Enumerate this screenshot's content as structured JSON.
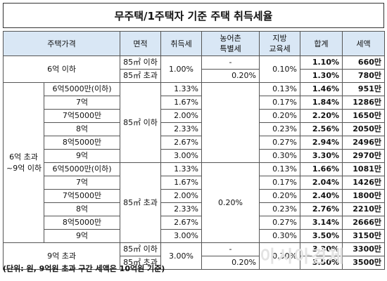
{
  "title": "무주택/1주택자 기준 주택 취득세율",
  "headers": {
    "price": "주택가격",
    "area": "면적",
    "acq_tax": "취득세",
    "rural_tax_l1": "농어촌",
    "rural_tax_l2": "특별세",
    "edu_tax_l1": "지방",
    "edu_tax_l2": "교육세",
    "total": "합계",
    "amount": "세액"
  },
  "groups": {
    "g1_price": "6억 이하",
    "g2_price_l1": "6억 초과",
    "g2_price_l2": "~9억 이하",
    "g3_price": "9억 초과"
  },
  "common": {
    "area_under": "85㎡ 이하",
    "area_over": "85㎡ 초과",
    "dash": "-",
    "g1_acq": "1.00%",
    "g1_rural_over": "0.20%",
    "g1_edu": "0.10%",
    "g2_rural_over": "0.20%",
    "g3_acq": "3.00%",
    "g3_rural_over": "0.20%",
    "g3_edu": "0.30%"
  },
  "g1_rows": [
    {
      "total": "1.10%",
      "amount": "660만"
    },
    {
      "total": "1.30%",
      "amount": "780만"
    }
  ],
  "g2_under_rows": [
    {
      "price": "6억5000만(이하)",
      "acq": "1.33%",
      "edu": "0.13%",
      "total": "1.46%",
      "amount": "951만"
    },
    {
      "price": "7억",
      "acq": "1.67%",
      "edu": "0.17%",
      "total": "1.84%",
      "amount": "1286만"
    },
    {
      "price": "7억5000만",
      "acq": "2.00%",
      "edu": "0.20%",
      "total": "2.20%",
      "amount": "1650만"
    },
    {
      "price": "8억",
      "acq": "2.33%",
      "edu": "0.23%",
      "total": "2.56%",
      "amount": "2050만"
    },
    {
      "price": "8억5000만",
      "acq": "2.67%",
      "edu": "0.27%",
      "total": "2.94%",
      "amount": "2496만"
    },
    {
      "price": "9억",
      "acq": "3.00%",
      "edu": "0.30%",
      "total": "3.30%",
      "amount": "2970만"
    }
  ],
  "g2_over_rows": [
    {
      "price": "6억5000만(이하)",
      "acq": "1.33%",
      "edu": "0.13%",
      "total": "1.66%",
      "amount": "1081만"
    },
    {
      "price": "7억",
      "acq": "1.67%",
      "edu": "0.17%",
      "total": "2.04%",
      "amount": "1426만"
    },
    {
      "price": "7억5000만",
      "acq": "2.00%",
      "edu": "0.20%",
      "total": "2.40%",
      "amount": "1800만"
    },
    {
      "price": "8억",
      "acq": "2.33%",
      "edu": "0.23%",
      "total": "2.76%",
      "amount": "2210만"
    },
    {
      "price": "8억5000만",
      "acq": "2.67%",
      "edu": "0.27%",
      "total": "3.14%",
      "amount": "2666만"
    },
    {
      "price": "9억",
      "acq": "3.00%",
      "edu": "0.30%",
      "total": "3.50%",
      "amount": "3150만"
    }
  ],
  "g3_rows": [
    {
      "total": "3.30%",
      "amount": "3300만"
    },
    {
      "total": "3.50%",
      "amount": "3500만"
    }
  ],
  "footnote": "(단위: 원, 9억원 초과 구간 세액은 10억원 기준)",
  "watermark": "아시아경제",
  "colors": {
    "header_bg": "#d9e7f5",
    "border": "#555555"
  }
}
